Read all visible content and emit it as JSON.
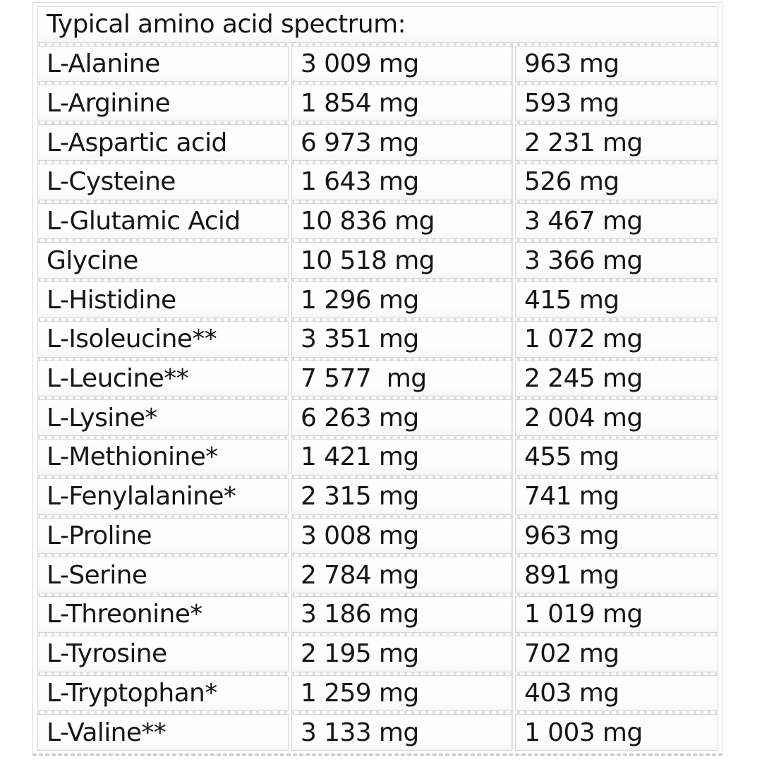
{
  "table": {
    "title": "Typical amino acid spectrum:",
    "unit": "mg",
    "rows": [
      {
        "name": "L-Alanine",
        "v1": "3 009 mg",
        "v2": "963 mg"
      },
      {
        "name": "L-Arginine",
        "v1": "1 854 mg",
        "v2": "593 mg"
      },
      {
        "name": "L-Aspartic acid",
        "v1": "6 973 mg",
        "v2": "2 231 mg"
      },
      {
        "name": "L-Cysteine",
        "v1": "1 643 mg",
        "v2": "526 mg"
      },
      {
        "name": "L-Glutamic Acid",
        "v1": "10 836 mg",
        "v2": "3 467 mg"
      },
      {
        "name": "Glycine",
        "v1": "10 518 mg",
        "v2": "3 366 mg"
      },
      {
        "name": "L-Histidine",
        "v1": "1 296 mg",
        "v2": "415 mg"
      },
      {
        "name": "L-Isoleucine**",
        "v1": "3 351 mg",
        "v2": "1 072 mg"
      },
      {
        "name": "L-Leucine**",
        "v1": "7 577  mg",
        "v2": "2 245 mg"
      },
      {
        "name": "L-Lysine*",
        "v1": "6 263 mg",
        "v2": "2 004 mg"
      },
      {
        "name": "L-Methionine*",
        "v1": "1 421 mg",
        "v2": "455 mg"
      },
      {
        "name": "L-Fenylalanine*",
        "v1": "2 315 mg",
        "v2": "741 mg"
      },
      {
        "name": "L-Proline",
        "v1": "3 008 mg",
        "v2": "963 mg"
      },
      {
        "name": "L-Serine",
        "v1": "2 784 mg",
        "v2": "891 mg"
      },
      {
        "name": "L-Threonine*",
        "v1": "3 186 mg",
        "v2": "1 019 mg"
      },
      {
        "name": "L-Tyrosine",
        "v1": "2 195 mg",
        "v2": "702 mg"
      },
      {
        "name": "L-Tryptophan*",
        "v1": "1 259 mg",
        "v2": "403 mg"
      },
      {
        "name": "L-Valine**",
        "v1": "3 133 mg",
        "v2": "1 003 mg"
      }
    ]
  },
  "colors": {
    "background": "#ffffff",
    "cell_border": "#d6d6d6",
    "text": "#161616",
    "dash_artifact": "#c6c6c6"
  }
}
